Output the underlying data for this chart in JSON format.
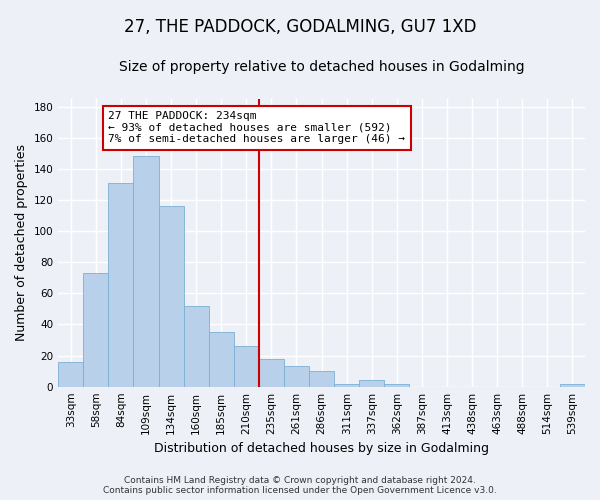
{
  "title": "27, THE PADDOCK, GODALMING, GU7 1XD",
  "subtitle": "Size of property relative to detached houses in Godalming",
  "xlabel": "Distribution of detached houses by size in Godalming",
  "ylabel": "Number of detached properties",
  "categories": [
    "33sqm",
    "58sqm",
    "84sqm",
    "109sqm",
    "134sqm",
    "160sqm",
    "185sqm",
    "210sqm",
    "235sqm",
    "261sqm",
    "286sqm",
    "311sqm",
    "337sqm",
    "362sqm",
    "387sqm",
    "413sqm",
    "438sqm",
    "463sqm",
    "488sqm",
    "514sqm",
    "539sqm"
  ],
  "values": [
    16,
    73,
    131,
    148,
    116,
    52,
    35,
    26,
    18,
    13,
    10,
    2,
    4,
    2,
    0,
    0,
    0,
    0,
    0,
    0,
    2
  ],
  "bar_color": "#b8d0ea",
  "bar_edge_color": "#7aafd4",
  "ylim": [
    0,
    185
  ],
  "yticks": [
    0,
    20,
    40,
    60,
    80,
    100,
    120,
    140,
    160,
    180
  ],
  "property_bar_index": 8,
  "annotation_text": "27 THE PADDOCK: 234sqm\n← 93% of detached houses are smaller (592)\n7% of semi-detached houses are larger (46) →",
  "annotation_box_color": "#ffffff",
  "annotation_box_edge_color": "#cc0000",
  "vline_color": "#cc0000",
  "footer_line1": "Contains HM Land Registry data © Crown copyright and database right 2024.",
  "footer_line2": "Contains public sector information licensed under the Open Government Licence v3.0.",
  "background_color": "#edf1f7",
  "grid_color": "#ffffff",
  "title_fontsize": 12,
  "subtitle_fontsize": 10,
  "tick_fontsize": 7.5,
  "ylabel_fontsize": 9,
  "xlabel_fontsize": 9,
  "annotation_fontsize": 8,
  "footer_fontsize": 6.5
}
